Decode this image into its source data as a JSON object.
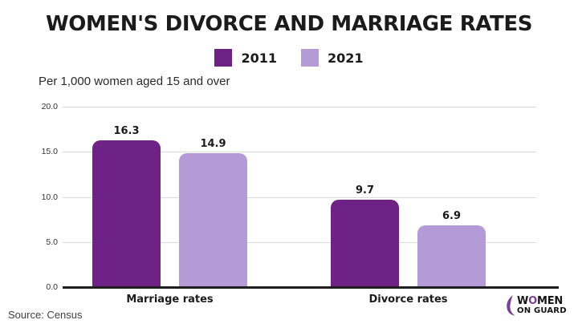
{
  "title": "WOMEN'S DIVORCE AND MARRIAGE RATES",
  "subtitle": "Per 1,000 women aged 15 and over",
  "source": "Source: Census",
  "colors": {
    "series_2011": "#6e2286",
    "series_2021": "#b49bd8",
    "axis": "#1f1f1f",
    "gridline": "#dadada",
    "logo_purple": "#7b3f98"
  },
  "legend": [
    {
      "label": "2011"
    },
    {
      "label": "2021"
    }
  ],
  "chart_data": {
    "type": "bar",
    "categories": [
      "Marriage rates",
      "Divorce rates"
    ],
    "series": [
      {
        "name": "2011",
        "color": "#6e2286",
        "values": [
          16.3,
          9.7
        ]
      },
      {
        "name": "2021",
        "color": "#b49bd8",
        "values": [
          14.9,
          6.9
        ]
      }
    ],
    "title": "WOMEN'S DIVORCE AND MARRIAGE RATES",
    "subtitle": "Per 1,000 women aged 15 and over",
    "xlabel": "",
    "ylabel": "Per 1,000 women aged 15 and over",
    "ylim": [
      0,
      20
    ],
    "yticks": [
      "20.0",
      "15.0",
      "10.0",
      "5.0",
      "0.0"
    ],
    "grid": true,
    "legend_position": "top",
    "source": "Source: Census"
  },
  "logo": {
    "w": "W",
    "o": "O",
    "men": "MEN",
    "line2": "ON GUARD"
  }
}
